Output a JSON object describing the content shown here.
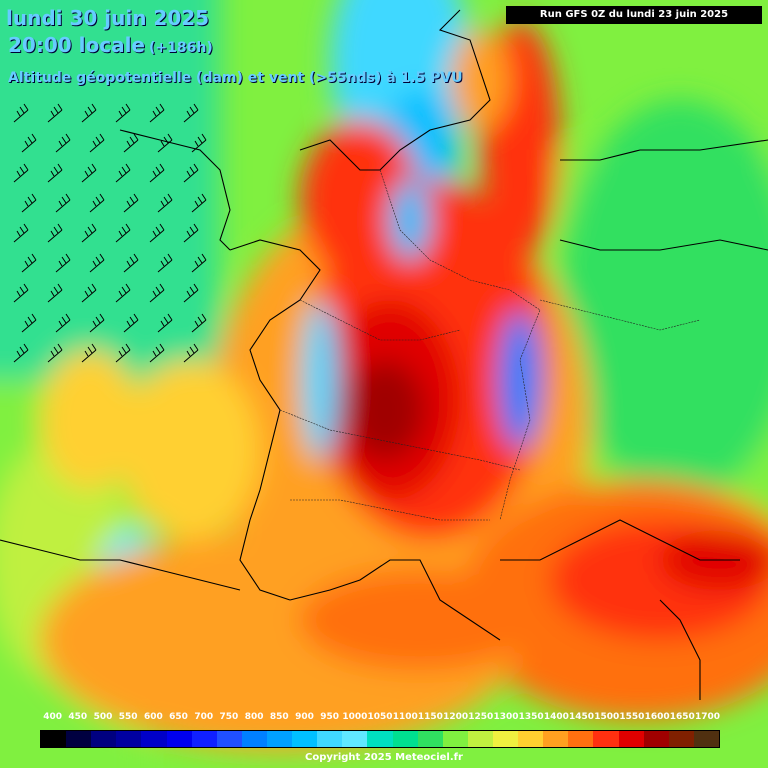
{
  "header": {
    "date_line": "lundi 30 juin 2025",
    "time_line": "20:00 locale",
    "lead_time": "(+186h)",
    "variable_line": "Altitude géopotentielle (dam) et vent (>55nds) à 1.5 PVU",
    "run_info": "Run GFS 0Z du lundi 23 juin 2025"
  },
  "legend": {
    "labels": [
      "400",
      "450",
      "500",
      "550",
      "600",
      "650",
      "700",
      "750",
      "800",
      "850",
      "900",
      "950",
      "1000",
      "1050",
      "1100",
      "1150",
      "1200",
      "1250",
      "1300",
      "1350",
      "1400",
      "1450",
      "1500",
      "1550",
      "1600",
      "1650",
      "1700"
    ],
    "colors": [
      "#000000",
      "#000040",
      "#000080",
      "#0000a0",
      "#0000c8",
      "#0000ee",
      "#1020ff",
      "#2050ff",
      "#0080ff",
      "#00a0ff",
      "#00c0ff",
      "#40d8ff",
      "#60e8ff",
      "#00e0c0",
      "#00e090",
      "#30e060",
      "#80f040",
      "#c0f040",
      "#f0f040",
      "#ffd030",
      "#ffa020",
      "#ff7010",
      "#ff3010",
      "#e00000",
      "#a00000",
      "#802000",
      "#503010"
    ]
  },
  "map": {
    "region": "Europe de l'Ouest",
    "wind_barb_color": "#000000"
  },
  "footer": {
    "copyright": "Copyright 2025 Meteociel.fr"
  }
}
